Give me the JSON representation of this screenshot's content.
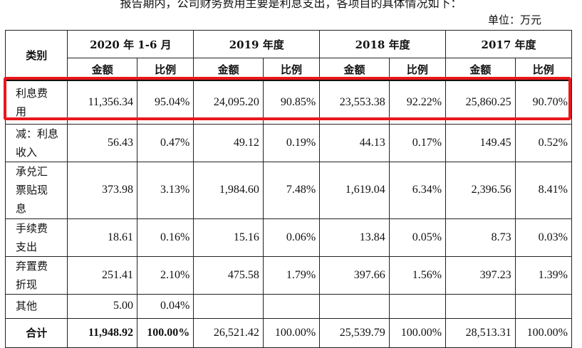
{
  "intro_text": "报告期内，公司财务费用主要是利息支出，各项目的具体情况如下：",
  "unit_label": "单位：万元",
  "table": {
    "category_header": "类别",
    "periods": [
      "2020 年 1-6 月",
      "2019 年度",
      "2018 年度",
      "2017 年度"
    ],
    "sub_headers": {
      "amount": "金额",
      "ratio": "比例"
    },
    "rows": [
      {
        "category_lines": [
          "利息费",
          "用"
        ],
        "cells": [
          "11,356.34",
          "95.04%",
          "24,095.20",
          "90.85%",
          "23,553.38",
          "92.22%",
          "25,860.25",
          "90.70%"
        ]
      },
      {
        "category_lines": [
          "减：利息",
          "收入"
        ],
        "cells": [
          "56.43",
          "0.47%",
          "49.12",
          "0.19%",
          "44.13",
          "0.17%",
          "149.45",
          "0.52%"
        ]
      },
      {
        "category_lines": [
          "承兑汇",
          "票贴现",
          "息"
        ],
        "cells": [
          "373.98",
          "3.13%",
          "1,984.60",
          "7.48%",
          "1,619.04",
          "6.34%",
          "2,396.56",
          "8.41%"
        ]
      },
      {
        "category_lines": [
          "手续费",
          "支出"
        ],
        "cells": [
          "18.61",
          "0.16%",
          "15.16",
          "0.06%",
          "13.84",
          "0.05%",
          "8.73",
          "0.03%"
        ]
      },
      {
        "category_lines": [
          "弃置费",
          "折现"
        ],
        "cells": [
          "251.41",
          "2.10%",
          "475.58",
          "1.79%",
          "397.66",
          "1.56%",
          "397.23",
          "1.39%"
        ]
      },
      {
        "category_lines": [
          "其他"
        ],
        "cells": [
          "5.00",
          "0.04%",
          "",
          "",
          "",
          "",
          "",
          ""
        ]
      }
    ],
    "total": {
      "label": "合计",
      "cells": [
        "11,948.92",
        "100.00%",
        "26,521.42",
        "100.00%",
        "25,539.79",
        "100.00%",
        "28,513.31",
        "100.00%"
      ]
    }
  },
  "highlight_color": "#e8171c"
}
